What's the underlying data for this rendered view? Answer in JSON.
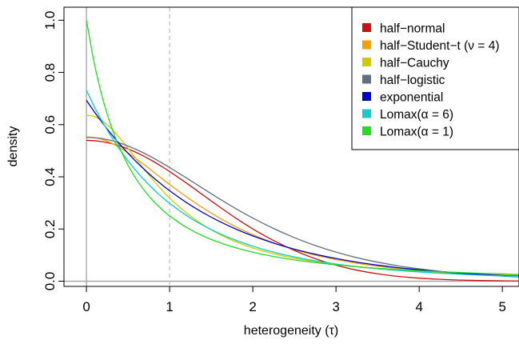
{
  "chart_data": {
    "type": "line",
    "xlabel": "heterogeneity (τ)",
    "ylabel": "density",
    "xlim": [
      -0.27,
      5.2
    ],
    "ylim": [
      -0.02,
      1.05
    ],
    "x_ticks": [
      {
        "value": 0,
        "label": "0"
      },
      {
        "value": 1,
        "label": "1"
      },
      {
        "value": 2,
        "label": "2"
      },
      {
        "value": 3,
        "label": "3"
      },
      {
        "value": 4,
        "label": "4"
      },
      {
        "value": 5,
        "label": "5"
      }
    ],
    "y_ticks": [
      {
        "value": 0.0,
        "label": "0.0"
      },
      {
        "value": 0.2,
        "label": "0.2"
      },
      {
        "value": 0.4,
        "label": "0.4"
      },
      {
        "value": 0.6,
        "label": "0.6"
      },
      {
        "value": 0.8,
        "label": "0.8"
      },
      {
        "value": 1.0,
        "label": "1.0"
      }
    ],
    "reference_lines": {
      "vertical_solid_x": 0,
      "horizontal_solid_y": 0,
      "vertical_dashed_x": 1
    },
    "grid": false,
    "legend_position": "top-right",
    "x": [
      0,
      0.1,
      0.2,
      0.3,
      0.4,
      0.5,
      0.6,
      0.7,
      0.8,
      0.9,
      1.0,
      1.2,
      1.4,
      1.6,
      1.8,
      2.0,
      2.25,
      2.5,
      2.75,
      3.0,
      3.25,
      3.5,
      3.75,
      4.0,
      4.25,
      4.5,
      4.75,
      5.0,
      5.2
    ],
    "series": [
      {
        "name": "half−normal",
        "color": "#cc1111",
        "values": [
          0.5395,
          0.5382,
          0.5341,
          0.5275,
          0.5184,
          0.5069,
          0.4931,
          0.4773,
          0.4598,
          0.4406,
          0.4202,
          0.3764,
          0.3305,
          0.2847,
          0.2408,
          0.2002,
          0.1556,
          0.1175,
          0.0862,
          0.0613,
          0.0423,
          0.0283,
          0.0184,
          0.0116,
          0.0071,
          0.0042,
          0.0024,
          0.0013,
          0.0008
        ]
      },
      {
        "name": "half−Student−t (ν = 4)",
        "color": "#f5a000",
        "values": [
          0.553,
          0.5502,
          0.5422,
          0.5292,
          0.5121,
          0.4917,
          0.4691,
          0.4449,
          0.42,
          0.3951,
          0.3705,
          0.3239,
          0.2806,
          0.2418,
          0.2079,
          0.1783,
          0.1469,
          0.1211,
          0.0999,
          0.0827,
          0.0687,
          0.0574,
          0.0482,
          0.0407,
          0.0345,
          0.0295,
          0.0253,
          0.0218,
          0.0194
        ]
      },
      {
        "name": "half−Cauchy",
        "color": "#cccc00",
        "values": [
          0.6366,
          0.6303,
          0.6121,
          0.5841,
          0.5488,
          0.5093,
          0.4681,
          0.4268,
          0.3882,
          0.3521,
          0.3183,
          0.2624,
          0.2163,
          0.1797,
          0.1505,
          0.1273,
          0.1052,
          0.0878,
          0.0741,
          0.0637,
          0.0549,
          0.0477,
          0.0418,
          0.0369,
          0.0328,
          0.0294,
          0.0264,
          0.0238,
          0.0221
        ]
      },
      {
        "name": "half−logistic",
        "color": "#607080",
        "values": [
          0.5513,
          0.5499,
          0.5457,
          0.539,
          0.5297,
          0.5181,
          0.5046,
          0.4893,
          0.4725,
          0.4545,
          0.4357,
          0.3961,
          0.3554,
          0.3154,
          0.2773,
          0.242,
          0.2019,
          0.1669,
          0.1367,
          0.1113,
          0.0902,
          0.0729,
          0.0587,
          0.0472,
          0.0378,
          0.0303,
          0.0243,
          0.0194,
          0.0162
        ]
      },
      {
        "name": "exponential",
        "color": "#0000cc",
        "values": [
          0.6931,
          0.6468,
          0.6035,
          0.5631,
          0.5254,
          0.4902,
          0.4574,
          0.4268,
          0.3982,
          0.3716,
          0.3467,
          0.3018,
          0.2628,
          0.2288,
          0.1992,
          0.1734,
          0.1459,
          0.1227,
          0.1032,
          0.0868,
          0.073,
          0.0614,
          0.0516,
          0.0434,
          0.0365,
          0.0307,
          0.0258,
          0.0217,
          0.0189
        ]
      },
      {
        "name": "Lomax(α = 6)",
        "color": "#11cccc",
        "values": [
          0.7313,
          0.6655,
          0.6063,
          0.5528,
          0.5046,
          0.4611,
          0.4218,
          0.3862,
          0.354,
          0.3247,
          0.2982,
          0.2522,
          0.2142,
          0.1826,
          0.1562,
          0.1342,
          0.1113,
          0.0929,
          0.078,
          0.0659,
          0.0559,
          0.0477,
          0.0409,
          0.0352,
          0.0304,
          0.0263,
          0.0229,
          0.02,
          0.018
        ]
      },
      {
        "name": "Lomax(α = 1)",
        "color": "#22dd22",
        "values": [
          1.0,
          0.8264,
          0.6944,
          0.5917,
          0.5102,
          0.4444,
          0.3906,
          0.346,
          0.3086,
          0.277,
          0.25,
          0.2066,
          0.1736,
          0.1479,
          0.1276,
          0.1111,
          0.0947,
          0.0816,
          0.0711,
          0.0625,
          0.0554,
          0.0494,
          0.0444,
          0.04,
          0.0363,
          0.0331,
          0.0302,
          0.0278,
          0.026
        ]
      }
    ]
  }
}
